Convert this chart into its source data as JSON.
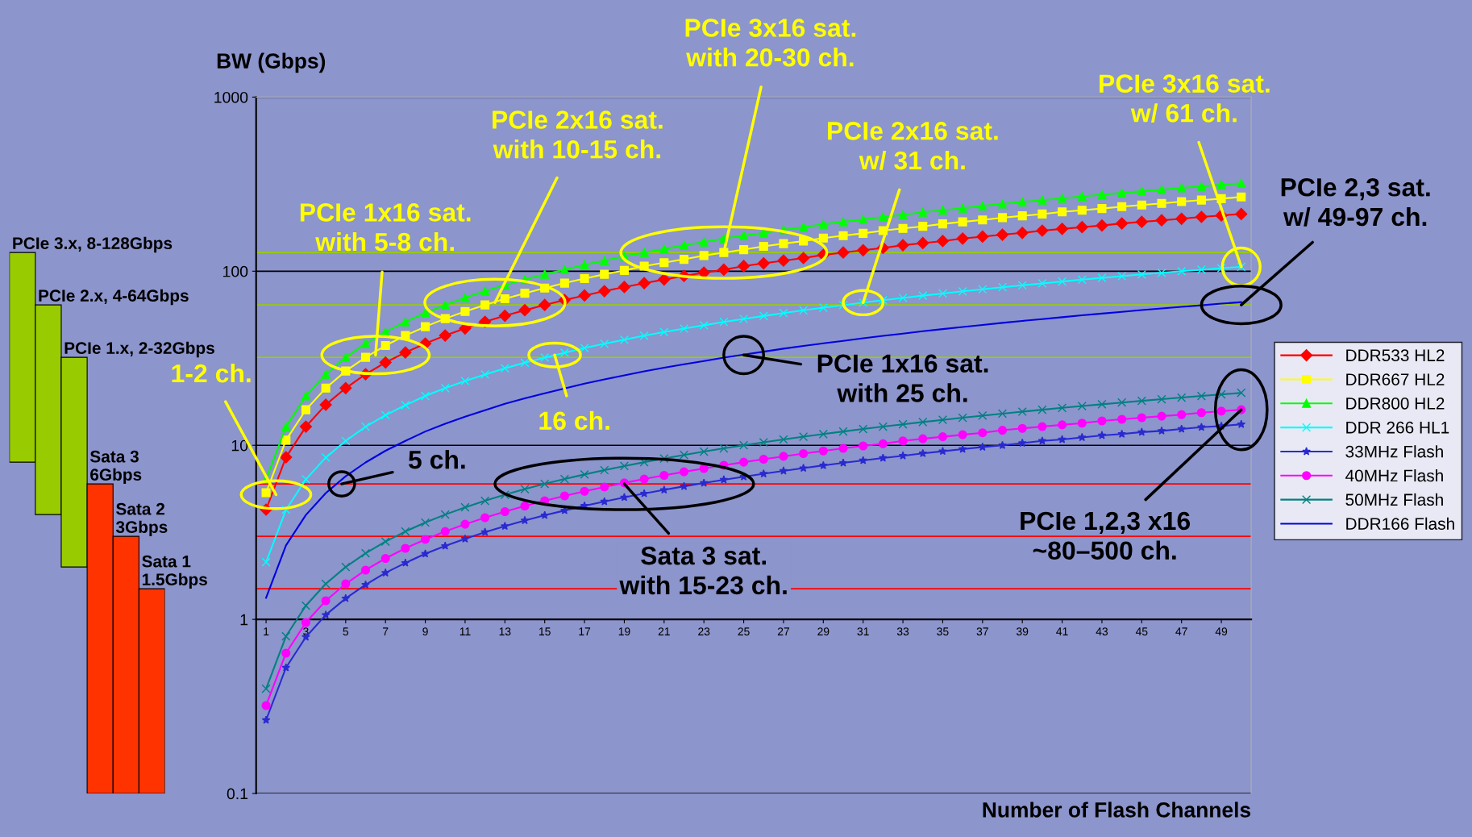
{
  "chart_data": [
    {
      "type": "line",
      "xlabel": "Number of Flash Channels",
      "ylabel": "BW (Gbps)",
      "log": "y",
      "grid": "y",
      "legend": "right",
      "xlim": [
        0.5,
        50.5
      ],
      "xticks": [
        1,
        3,
        5,
        7,
        9,
        11,
        13,
        15,
        17,
        19,
        21,
        23,
        25,
        27,
        29,
        31,
        33,
        35,
        37,
        39,
        41,
        43,
        45,
        47,
        49
      ],
      "ylim": [
        0.1,
        1000
      ],
      "yticks": [
        0.1,
        1,
        10,
        100,
        1000
      ],
      "x": [
        1,
        2,
        3,
        4,
        5,
        6,
        7,
        8,
        9,
        10,
        11,
        12,
        13,
        14,
        15,
        16,
        17,
        18,
        19,
        20,
        21,
        22,
        23,
        24,
        25,
        26,
        27,
        28,
        29,
        30,
        31,
        32,
        33,
        34,
        35,
        36,
        37,
        38,
        39,
        40,
        41,
        42,
        43,
        44,
        45,
        46,
        47,
        48,
        49,
        50
      ],
      "series": [
        {
          "name": "DDR533 HL2",
          "color": "#ff0000",
          "marker": "diamond",
          "values": [
            4.27,
            8.53,
            12.8,
            17.1,
            21.3,
            25.6,
            29.9,
            34.1,
            38.4,
            42.7,
            46.9,
            51.2,
            55.5,
            59.7,
            64.0,
            68.3,
            72.5,
            76.8,
            81.1,
            85.3,
            89.6,
            93.9,
            98.1,
            102,
            107,
            111,
            115,
            119,
            124,
            128,
            132,
            136,
            141,
            145,
            149,
            154,
            158,
            162,
            166,
            171,
            175,
            179,
            183,
            188,
            192,
            196,
            200,
            205,
            209,
            213
          ]
        },
        {
          "name": "DDR667 HL2",
          "color": "#ffff00",
          "marker": "square",
          "values": [
            5.34,
            10.7,
            16.0,
            21.3,
            26.7,
            32.0,
            37.4,
            42.7,
            48.0,
            53.4,
            58.7,
            64.0,
            69.4,
            74.7,
            80.0,
            85.4,
            90.7,
            96.0,
            101,
            107,
            112,
            117,
            123,
            128,
            133,
            139,
            144,
            149,
            155,
            160,
            165,
            171,
            176,
            181,
            187,
            192,
            197,
            203,
            208,
            213,
            219,
            224,
            229,
            235,
            240,
            245,
            251,
            256,
            261,
            267
          ]
        },
        {
          "name": "DDR800 HL2",
          "color": "#00ff00",
          "marker": "triangle",
          "values": [
            6.4,
            12.8,
            19.2,
            25.6,
            32,
            38.4,
            44.8,
            51.2,
            57.6,
            64,
            70.4,
            76.8,
            83.2,
            89.6,
            96,
            102,
            109,
            115,
            122,
            128,
            134,
            141,
            147,
            154,
            160,
            166,
            173,
            179,
            186,
            192,
            198,
            205,
            211,
            218,
            224,
            230,
            237,
            243,
            250,
            256,
            262,
            269,
            275,
            282,
            288,
            294,
            301,
            307,
            314,
            320
          ]
        },
        {
          "name": "DDR 266 HL1",
          "color": "#00ffff",
          "marker": "cross",
          "values": [
            2.13,
            4.26,
            6.38,
            8.51,
            10.6,
            12.8,
            14.9,
            17.0,
            19.2,
            21.3,
            23.4,
            25.5,
            27.7,
            29.8,
            31.9,
            34.0,
            36.2,
            38.3,
            40.4,
            42.6,
            44.7,
            46.8,
            48.9,
            51.1,
            53.2,
            55.3,
            57.5,
            59.6,
            61.7,
            63.8,
            66.0,
            68.1,
            70.2,
            72.4,
            74.5,
            76.6,
            78.7,
            80.9,
            83.0,
            85.1,
            87.2,
            89.4,
            91.5,
            93.6,
            95.8,
            97.9,
            100,
            102,
            104,
            106
          ]
        },
        {
          "name": "33MHz Flash",
          "color": "#2a2ad0",
          "marker": "star",
          "values": [
            0.264,
            0.528,
            0.792,
            1.06,
            1.32,
            1.58,
            1.85,
            2.11,
            2.38,
            2.64,
            2.9,
            3.17,
            3.43,
            3.7,
            3.96,
            4.22,
            4.49,
            4.75,
            5.02,
            5.28,
            5.54,
            5.81,
            6.07,
            6.34,
            6.6,
            6.86,
            7.13,
            7.39,
            7.66,
            7.92,
            8.18,
            8.45,
            8.71,
            8.98,
            9.24,
            9.5,
            9.77,
            10.0,
            10.3,
            10.6,
            10.8,
            11.1,
            11.4,
            11.6,
            11.9,
            12.1,
            12.4,
            12.7,
            12.9,
            13.2
          ]
        },
        {
          "name": "40MHz Flash",
          "color": "#ff00ff",
          "marker": "circle",
          "values": [
            0.32,
            0.64,
            0.96,
            1.28,
            1.6,
            1.92,
            2.24,
            2.56,
            2.88,
            3.2,
            3.52,
            3.84,
            4.16,
            4.48,
            4.8,
            5.12,
            5.44,
            5.76,
            6.08,
            6.4,
            6.72,
            7.04,
            7.36,
            7.68,
            8,
            8.32,
            8.64,
            8.96,
            9.28,
            9.6,
            9.92,
            10.2,
            10.6,
            10.9,
            11.2,
            11.5,
            11.8,
            12.2,
            12.5,
            12.8,
            13.1,
            13.4,
            13.8,
            14.1,
            14.4,
            14.7,
            15.0,
            15.4,
            15.7,
            16
          ]
        },
        {
          "name": "50MHz Flash",
          "color": "#008080",
          "marker": "cross",
          "values": [
            0.4,
            0.8,
            1.2,
            1.6,
            2,
            2.4,
            2.8,
            3.2,
            3.6,
            4,
            4.4,
            4.8,
            5.2,
            5.6,
            6,
            6.4,
            6.8,
            7.2,
            7.6,
            8,
            8.4,
            8.8,
            9.2,
            9.6,
            10,
            10.4,
            10.8,
            11.2,
            11.6,
            12,
            12.4,
            12.8,
            13.2,
            13.6,
            14,
            14.4,
            14.8,
            15.2,
            15.6,
            16,
            16.4,
            16.8,
            17.2,
            17.6,
            18,
            18.4,
            18.8,
            19.2,
            19.6,
            20
          ]
        },
        {
          "name": "DDR166 Flash",
          "color": "#0000e0",
          "marker": "none",
          "values": [
            1.33,
            2.66,
            3.98,
            5.31,
            6.64,
            7.97,
            9.3,
            10.6,
            12.0,
            13.3,
            14.6,
            15.9,
            17.3,
            18.6,
            19.9,
            21.2,
            22.6,
            23.9,
            25.2,
            26.6,
            27.9,
            29.2,
            30.5,
            31.9,
            33.2,
            34.5,
            35.9,
            37.2,
            38.5,
            39.8,
            41.2,
            42.5,
            43.8,
            45.2,
            46.5,
            47.8,
            49.1,
            50.5,
            51.8,
            53.1,
            54.4,
            55.8,
            57.1,
            58.4,
            59.8,
            61.1,
            62.4,
            63.7,
            65.1,
            66.4
          ]
        }
      ],
      "ref_lines": [
        {
          "axis": "y",
          "value": 128,
          "color": "#99cc00"
        },
        {
          "axis": "y",
          "value": 64,
          "color": "#99cc00"
        },
        {
          "axis": "y",
          "value": 32,
          "color": "#99cc00"
        },
        {
          "axis": "y",
          "value": 6,
          "color": "#ff0000"
        },
        {
          "axis": "y",
          "value": 3,
          "color": "#ff0000"
        },
        {
          "axis": "y",
          "value": 1.5,
          "color": "#ff0000"
        }
      ],
      "annotations": [
        {
          "text": "1-2 ch.",
          "x": 1.5,
          "y": 5.2
        },
        {
          "text": "PCIe 1x16 sat.\nwith 5-8 ch.",
          "x": 6.5,
          "y": 33
        },
        {
          "text": "PCIe 2x16 sat.\nwith 10-15 ch.",
          "x": 12.5,
          "y": 66
        },
        {
          "text": "PCIe 3x16 sat.\nwith 20-30 ch.",
          "x": 24,
          "y": 128
        },
        {
          "text": "PCIe 2x16 sat.\nw/ 31 ch.",
          "x": 31,
          "y": 66
        },
        {
          "text": "PCIe 3x16 sat.\nw/ 61 ch.",
          "x": 50,
          "y": 106
        },
        {
          "text": "PCIe 2,3 sat.\nw/ 49-97 ch.",
          "x": 50,
          "y": 64
        },
        {
          "text": "16 ch.",
          "x": 15.5,
          "y": 33
        },
        {
          "text": "PCIe 1x16 sat.\nwith 25 ch.",
          "x": 25,
          "y": 33
        },
        {
          "text": "5 ch.",
          "x": 4.8,
          "y": 6
        },
        {
          "text": "Sata 3 sat.\nwith 15-23 ch.",
          "x": 19,
          "y": 6
        },
        {
          "text": "PCIe 1,2,3 x16\n~80–500 ch.",
          "x": 50,
          "y": 16
        }
      ]
    },
    {
      "type": "bar",
      "categories": [
        null,
        null,
        null,
        null,
        null,
        null
      ],
      "annotations": [
        "PCIe 3.x, 8-128Gbps",
        "PCIe 2.x, 4-64Gbps",
        "PCIe 1.x, 2-32Gbps",
        "Sata 3\n6Gbps",
        "Sata 2\n3Gbps",
        "Sata 1\n1.5Gbps"
      ],
      "values": [
        120,
        60,
        30,
        5.9,
        2.9,
        1.4
      ],
      "base": [
        8,
        4,
        2,
        0.1,
        0.1,
        0.1
      ],
      "colors": [
        "#99cc00",
        "#99cc00",
        "#99cc00",
        "#ff3300",
        "#ff3300",
        "#ff3300"
      ],
      "log": "y",
      "ylim": [
        0.1,
        1000
      ],
      "tick_labels": false
    }
  ]
}
